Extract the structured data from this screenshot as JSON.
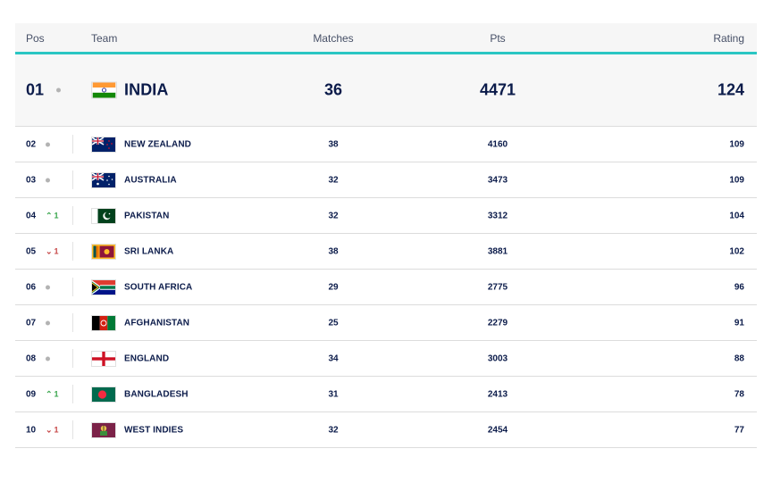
{
  "header": {
    "pos": "Pos",
    "team": "Team",
    "matches": "Matches",
    "pts": "Pts",
    "rating": "Rating"
  },
  "colors": {
    "accent": "#2ac6c3",
    "text": "#0b1b4a",
    "up": "#3aa64d",
    "down": "#c74848"
  },
  "rows": [
    {
      "pos": "01",
      "movement": "none",
      "change": "",
      "team": "INDIA",
      "flag": "india-flag-icon",
      "matches": "36",
      "pts": "4471",
      "rating": "124"
    },
    {
      "pos": "02",
      "movement": "none",
      "change": "",
      "team": "NEW ZEALAND",
      "flag": "new-zealand-flag-icon",
      "matches": "38",
      "pts": "4160",
      "rating": "109"
    },
    {
      "pos": "03",
      "movement": "none",
      "change": "",
      "team": "AUSTRALIA",
      "flag": "australia-flag-icon",
      "matches": "32",
      "pts": "3473",
      "rating": "109"
    },
    {
      "pos": "04",
      "movement": "up",
      "change": "1",
      "team": "PAKISTAN",
      "flag": "pakistan-flag-icon",
      "matches": "32",
      "pts": "3312",
      "rating": "104"
    },
    {
      "pos": "05",
      "movement": "down",
      "change": "1",
      "team": "SRI LANKA",
      "flag": "sri-lanka-flag-icon",
      "matches": "38",
      "pts": "3881",
      "rating": "102"
    },
    {
      "pos": "06",
      "movement": "none",
      "change": "",
      "team": "SOUTH AFRICA",
      "flag": "south-africa-flag-icon",
      "matches": "29",
      "pts": "2775",
      "rating": "96"
    },
    {
      "pos": "07",
      "movement": "none",
      "change": "",
      "team": "AFGHANISTAN",
      "flag": "afghanistan-flag-icon",
      "matches": "25",
      "pts": "2279",
      "rating": "91"
    },
    {
      "pos": "08",
      "movement": "none",
      "change": "",
      "team": "ENGLAND",
      "flag": "england-flag-icon",
      "matches": "34",
      "pts": "3003",
      "rating": "88"
    },
    {
      "pos": "09",
      "movement": "up",
      "change": "1",
      "team": "BANGLADESH",
      "flag": "bangladesh-flag-icon",
      "matches": "31",
      "pts": "2413",
      "rating": "78"
    },
    {
      "pos": "10",
      "movement": "down",
      "change": "1",
      "team": "WEST INDIES",
      "flag": "west-indies-flag-icon",
      "matches": "32",
      "pts": "2454",
      "rating": "77"
    }
  ]
}
